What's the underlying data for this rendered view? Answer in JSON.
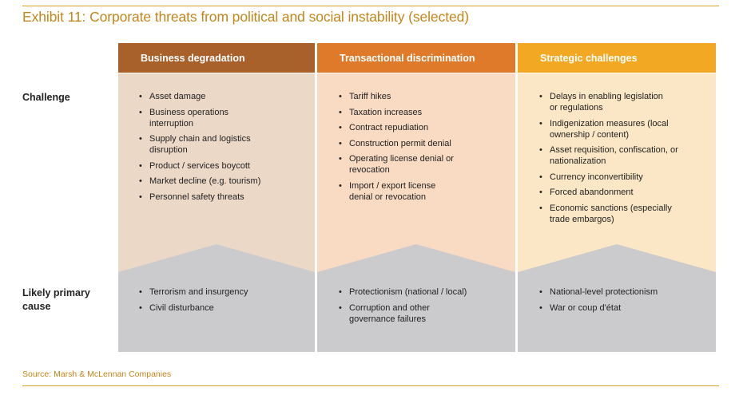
{
  "title": "Exhibit 11: Corporate threats from political and social instability (selected)",
  "row_labels": {
    "challenge": "Challenge",
    "cause": "Likely primary cause"
  },
  "columns": [
    {
      "header": "Business degradation",
      "header_color": "#a9612c",
      "challenge_bg": "#ecd8c7",
      "challenges": [
        "Asset damage",
        "Business operations interruption",
        "Supply chain and logistics disruption",
        "Product / services boycott",
        "Market decline (e.g. tourism)",
        "Personnel safety threats"
      ],
      "causes": [
        "Terrorism and insurgency",
        "Civil disturbance"
      ]
    },
    {
      "header": "Transactional discrimination",
      "header_color": "#de7a2a",
      "challenge_bg": "#f9dac2",
      "challenges": [
        "Tariff hikes",
        "Taxation increases",
        "Contract repudiation",
        "Construction permit denial",
        "Operating license denial or revocation",
        "Import / export license denial or revocation"
      ],
      "causes": [
        "Protectionism (national / local)",
        "Corruption and other governance failures"
      ]
    },
    {
      "header": "Strategic challenges",
      "header_color": "#f3a823",
      "challenge_bg": "#fbe7c5",
      "challenges": [
        "Delays in enabling legislation or regulations",
        "Indigenization measures (local ownership / content)",
        "Asset requisition, confiscation, or nationalization",
        "Currency inconvertibility",
        "Forced abandonment",
        "Economic sanctions (especially trade embargos)"
      ],
      "causes": [
        "National-level protectionism",
        "War or coup d'état"
      ]
    }
  ],
  "cause_bg": "#cbcbcd",
  "source": "Source: Marsh & McLennan Companies"
}
